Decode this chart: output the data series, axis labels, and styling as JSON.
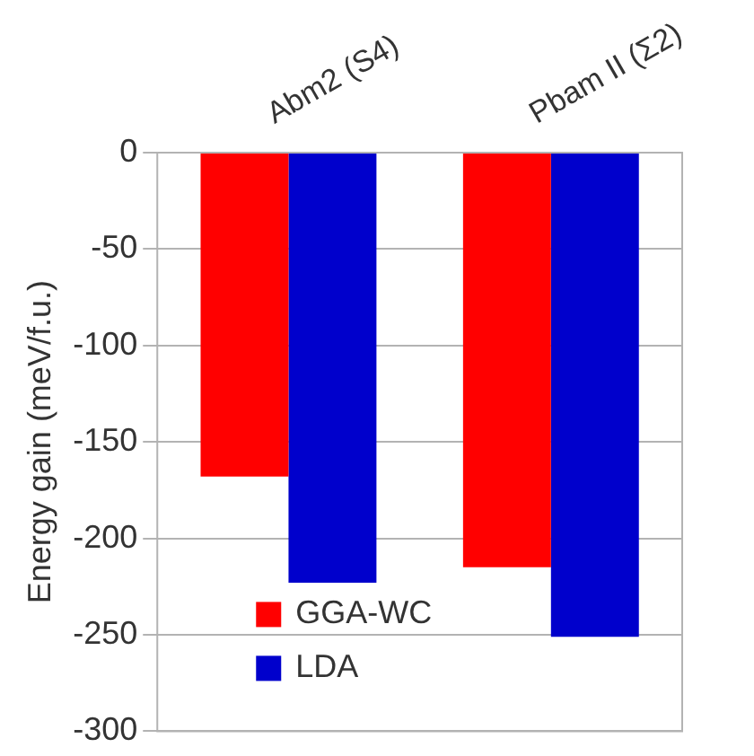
{
  "chart_data": {
    "type": "bar",
    "ylabel": "Energy gain (meV/f.u.)",
    "categories": [
      "Abm2 (S4)",
      "Pbam II (Σ2)"
    ],
    "series": [
      {
        "name": "GGA-WC",
        "color": "#ff0000",
        "values": [
          -168,
          -215
        ]
      },
      {
        "name": "LDA",
        "color": "#0000cc",
        "values": [
          -223,
          -251
        ]
      }
    ],
    "ylim": [
      -300,
      0
    ],
    "yticks": [
      0,
      -50,
      -100,
      -150,
      -200,
      -250,
      -300
    ],
    "grid": "y",
    "legend": "bottom left"
  }
}
